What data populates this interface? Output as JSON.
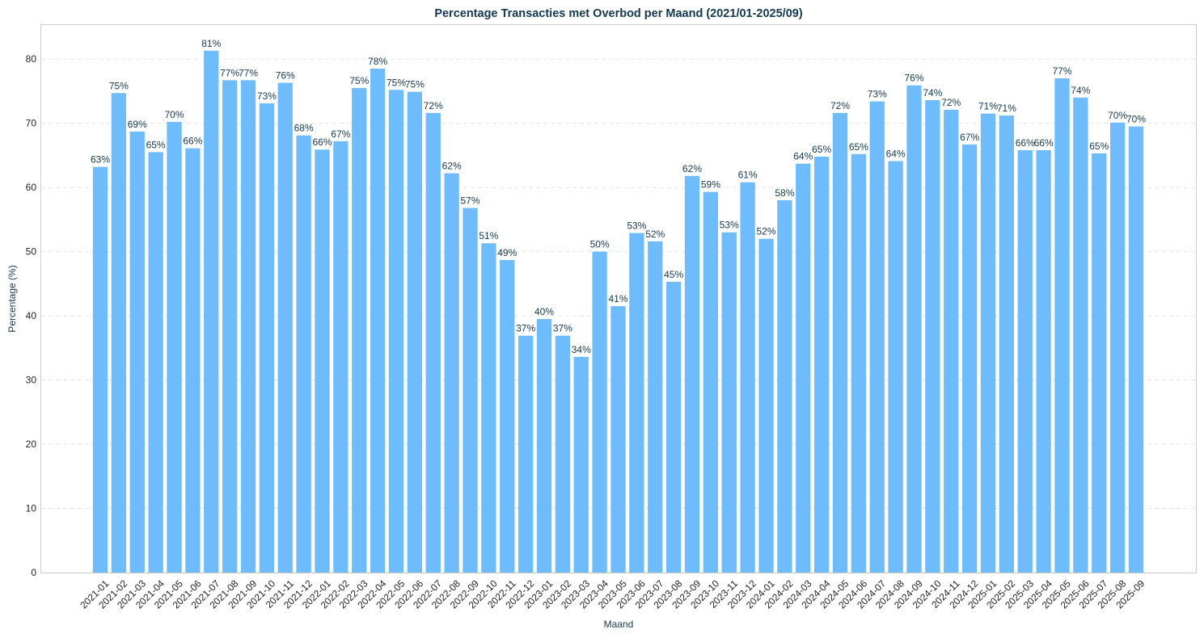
{
  "chart_data": {
    "type": "bar",
    "title": "Percentage Transacties met Overbod per Maand (2021/01-2025/09)",
    "xlabel": "Maand",
    "ylabel": "Percentage (%)",
    "ylim": [
      0,
      85.3
    ],
    "yticks": [
      0,
      10,
      20,
      30,
      40,
      50,
      60,
      70,
      80
    ],
    "grid": "y-dashed",
    "bar_color": "#6ebcfc",
    "categories": [
      "2021-01",
      "2021-02",
      "2021-03",
      "2021-04",
      "2021-05",
      "2021-06",
      "2021-07",
      "2021-08",
      "2021-09",
      "2021-10",
      "2021-11",
      "2021-12",
      "2022-01",
      "2022-02",
      "2022-03",
      "2022-04",
      "2022-05",
      "2022-06",
      "2022-07",
      "2022-08",
      "2022-09",
      "2022-10",
      "2022-11",
      "2022-12",
      "2023-01",
      "2023-02",
      "2023-03",
      "2023-04",
      "2023-05",
      "2023-06",
      "2023-07",
      "2023-08",
      "2023-09",
      "2023-10",
      "2023-11",
      "2023-12",
      "2024-01",
      "2024-02",
      "2024-03",
      "2024-04",
      "2024-05",
      "2024-06",
      "2024-07",
      "2024-08",
      "2024-09",
      "2024-10",
      "2024-11",
      "2024-12",
      "2025-01",
      "2025-02",
      "2025-03",
      "2025-04",
      "2025-05",
      "2025-06",
      "2025-07",
      "2025-08",
      "2025-09"
    ],
    "values": [
      63.2,
      74.7,
      68.7,
      65.5,
      70.2,
      66.1,
      81.3,
      76.7,
      76.7,
      73.1,
      76.3,
      68.1,
      65.9,
      67.2,
      75.5,
      78.5,
      75.2,
      74.9,
      71.6,
      62.2,
      56.8,
      51.3,
      48.7,
      36.9,
      39.5,
      36.9,
      33.6,
      50.0,
      41.5,
      52.9,
      51.6,
      45.3,
      61.8,
      59.3,
      53.0,
      60.8,
      52.0,
      58.0,
      63.7,
      64.8,
      71.6,
      65.2,
      73.4,
      64.1,
      75.9,
      73.6,
      72.1,
      66.7,
      71.5,
      71.2,
      65.8,
      65.8,
      77.0,
      74.0,
      65.3,
      70.1,
      69.5
    ],
    "data_labels": [
      "63%",
      "75%",
      "69%",
      "65%",
      "70%",
      "66%",
      "81%",
      "77%",
      "77%",
      "73%",
      "76%",
      "68%",
      "66%",
      "67%",
      "75%",
      "78%",
      "75%",
      "75%",
      "72%",
      "62%",
      "57%",
      "51%",
      "49%",
      "37%",
      "40%",
      "37%",
      "34%",
      "50%",
      "41%",
      "53%",
      "52%",
      "45%",
      "62%",
      "59%",
      "53%",
      "61%",
      "52%",
      "58%",
      "64%",
      "65%",
      "72%",
      "65%",
      "73%",
      "64%",
      "76%",
      "74%",
      "72%",
      "67%",
      "71%",
      "71%",
      "66%",
      "66%",
      "77%",
      "74%",
      "65%",
      "70%",
      "70%"
    ]
  }
}
